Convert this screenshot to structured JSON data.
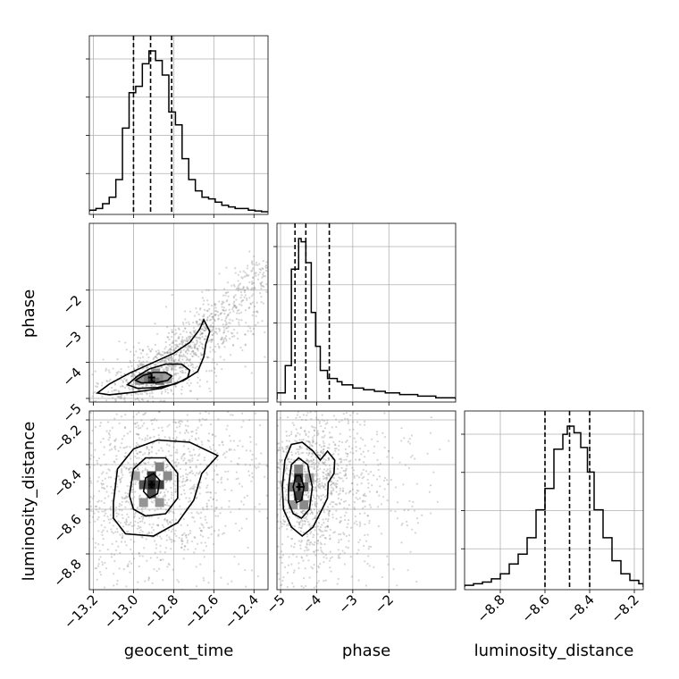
{
  "chart_data": {
    "type": "corner",
    "parameters": [
      "geocent_time",
      "phase",
      "luminosity_distance"
    ],
    "axis_labels": {
      "geocent_time": "geocent_time",
      "phase": "phase",
      "luminosity_distance": "luminosity_distance"
    },
    "ranges": {
      "geocent_time": [
        -13.22,
        -12.33
      ],
      "phase": [
        -5.1,
        -0.15
      ],
      "luminosity_distance": [
        -8.96,
        -8.16
      ]
    },
    "ticks": {
      "geocent_time": [
        -13.2,
        -13.0,
        -12.8,
        -12.6,
        -12.4
      ],
      "phase": [
        -5,
        -4,
        -3,
        -2
      ],
      "luminosity_distance": [
        -8.8,
        -8.6,
        -8.4,
        -8.2
      ]
    },
    "tick_labels": {
      "geocent_time": [
        "−13.2",
        "−13.0",
        "−12.8",
        "−12.6",
        "−12.4"
      ],
      "phase": [
        "−5",
        "−4",
        "−3",
        "−2"
      ],
      "luminosity_distance": [
        "−8.8",
        "−8.6",
        "−8.4",
        "−8.2"
      ]
    },
    "quantiles": {
      "geocent_time": [
        -13.0,
        -12.915,
        -12.81
      ],
      "phase": [
        -4.6,
        -4.3,
        -3.65
      ],
      "luminosity_distance": [
        -8.6,
        -8.49,
        -8.4
      ]
    },
    "histograms": {
      "geocent_time": {
        "edges": [
          -13.22,
          -13.187,
          -13.154,
          -13.121,
          -13.088,
          -13.055,
          -13.022,
          -12.989,
          -12.956,
          -12.923,
          -12.89,
          -12.857,
          -12.824,
          -12.791,
          -12.758,
          -12.725,
          -12.692,
          -12.659,
          -12.626,
          -12.593,
          -12.56,
          -12.527,
          -12.494,
          -12.461,
          -12.428,
          -12.395,
          -12.362,
          -12.33
        ],
        "counts": [
          0.01,
          0.02,
          0.05,
          0.09,
          0.2,
          0.52,
          0.74,
          0.78,
          0.92,
          1.0,
          0.94,
          0.85,
          0.62,
          0.54,
          0.33,
          0.2,
          0.13,
          0.09,
          0.08,
          0.06,
          0.04,
          0.03,
          0.02,
          0.02,
          0.01,
          0.005,
          0.0
        ]
      },
      "phase": {
        "edges": [
          -5.1,
          -4.87,
          -4.7,
          -4.5,
          -4.43,
          -4.3,
          -4.15,
          -4.03,
          -3.9,
          -3.7,
          -3.43,
          -3.3,
          -3.0,
          -2.7,
          -2.4,
          -2.1,
          -1.7,
          -1.2,
          -0.7,
          -0.15
        ],
        "counts": [
          0.04,
          0.21,
          0.81,
          1.0,
          0.98,
          0.85,
          0.54,
          0.33,
          0.18,
          0.13,
          0.11,
          0.09,
          0.07,
          0.06,
          0.05,
          0.04,
          0.03,
          0.02,
          0.01
        ]
      },
      "luminosity_distance": {
        "edges": [
          -8.96,
          -8.92,
          -8.88,
          -8.84,
          -8.8,
          -8.76,
          -8.72,
          -8.68,
          -8.64,
          -8.6,
          -8.56,
          -8.52,
          -8.5,
          -8.47,
          -8.44,
          -8.41,
          -8.38,
          -8.34,
          -8.3,
          -8.26,
          -8.22,
          -8.18,
          -8.16
        ],
        "counts": [
          0.01,
          0.02,
          0.03,
          0.05,
          0.08,
          0.14,
          0.2,
          0.3,
          0.47,
          0.6,
          0.84,
          0.93,
          0.98,
          0.94,
          0.85,
          0.7,
          0.47,
          0.3,
          0.16,
          0.08,
          0.04,
          0.02
        ]
      }
    },
    "joint": [
      {
        "x": "geocent_time",
        "y": "phase",
        "peak": [
          -12.91,
          -4.42
        ],
        "contours": [
          [
            [
              -13.18,
              -4.85
            ],
            [
              -13.12,
              -4.6
            ],
            [
              -13.02,
              -4.3
            ],
            [
              -12.92,
              -4.05
            ],
            [
              -12.8,
              -3.75
            ],
            [
              -12.72,
              -3.45
            ],
            [
              -12.67,
              -3.08
            ],
            [
              -12.65,
              -2.82
            ],
            [
              -12.62,
              -3.15
            ],
            [
              -12.64,
              -3.5
            ],
            [
              -12.65,
              -3.85
            ],
            [
              -12.68,
              -4.25
            ],
            [
              -12.75,
              -4.5
            ],
            [
              -12.86,
              -4.72
            ],
            [
              -13.0,
              -4.83
            ],
            [
              -13.12,
              -4.9
            ],
            [
              -13.18,
              -4.85
            ]
          ],
          [
            [
              -13.03,
              -4.62
            ],
            [
              -12.98,
              -4.38
            ],
            [
              -12.92,
              -4.18
            ],
            [
              -12.84,
              -4.05
            ],
            [
              -12.76,
              -4.05
            ],
            [
              -12.72,
              -4.22
            ],
            [
              -12.73,
              -4.42
            ],
            [
              -12.79,
              -4.6
            ],
            [
              -12.88,
              -4.7
            ],
            [
              -12.98,
              -4.72
            ],
            [
              -13.03,
              -4.62
            ]
          ],
          [
            [
              -12.99,
              -4.5
            ],
            [
              -12.95,
              -4.36
            ],
            [
              -12.9,
              -4.28
            ],
            [
              -12.84,
              -4.28
            ],
            [
              -12.81,
              -4.38
            ],
            [
              -12.83,
              -4.5
            ],
            [
              -12.89,
              -4.57
            ],
            [
              -12.96,
              -4.57
            ],
            [
              -12.99,
              -4.5
            ]
          ]
        ],
        "blocks": [
          [
            -12.93,
            -4.46,
            0.9
          ],
          [
            -12.89,
            -4.46,
            1.0
          ],
          [
            -12.91,
            -4.38,
            0.75
          ],
          [
            -12.87,
            -4.5,
            0.6
          ],
          [
            -12.95,
            -4.42,
            0.55
          ],
          [
            -12.85,
            -4.38,
            0.45
          ],
          [
            -12.97,
            -4.5,
            0.4
          ],
          [
            -12.89,
            -4.3,
            0.4
          ],
          [
            -12.83,
            -4.46,
            0.35
          ]
        ]
      },
      {
        "x": "geocent_time",
        "y": "luminosity_distance",
        "peak": [
          -12.91,
          -8.49
        ],
        "contours": [
          [
            [
              -13.1,
              -8.57
            ],
            [
              -13.08,
              -8.42
            ],
            [
              -13.0,
              -8.33
            ],
            [
              -12.88,
              -8.29
            ],
            [
              -12.72,
              -8.3
            ],
            [
              -12.58,
              -8.36
            ],
            [
              -12.66,
              -8.44
            ],
            [
              -12.7,
              -8.56
            ],
            [
              -12.78,
              -8.66
            ],
            [
              -12.9,
              -8.72
            ],
            [
              -13.04,
              -8.71
            ],
            [
              -13.1,
              -8.64
            ],
            [
              -13.1,
              -8.57
            ]
          ],
          [
            [
              -13.02,
              -8.54
            ],
            [
              -13.0,
              -8.42
            ],
            [
              -12.94,
              -8.37
            ],
            [
              -12.84,
              -8.37
            ],
            [
              -12.78,
              -8.44
            ],
            [
              -12.78,
              -8.55
            ],
            [
              -12.84,
              -8.62
            ],
            [
              -12.94,
              -8.63
            ],
            [
              -13.0,
              -8.6
            ],
            [
              -13.02,
              -8.54
            ]
          ],
          [
            [
              -12.95,
              -8.52
            ],
            [
              -12.94,
              -8.46
            ],
            [
              -12.9,
              -8.44
            ],
            [
              -12.87,
              -8.47
            ],
            [
              -12.88,
              -8.53
            ],
            [
              -12.92,
              -8.55
            ],
            [
              -12.95,
              -8.52
            ]
          ]
        ],
        "blocks": [
          [
            -12.91,
            -8.49,
            1.0
          ],
          [
            -12.91,
            -8.45,
            0.85
          ],
          [
            -12.87,
            -8.49,
            0.8
          ],
          [
            -12.95,
            -8.49,
            0.7
          ],
          [
            -12.91,
            -8.53,
            0.75
          ],
          [
            -12.87,
            -8.41,
            0.5
          ],
          [
            -12.83,
            -8.45,
            0.45
          ],
          [
            -12.95,
            -8.57,
            0.4
          ],
          [
            -12.87,
            -8.57,
            0.4
          ],
          [
            -12.99,
            -8.45,
            0.35
          ]
        ]
      },
      {
        "x": "phase",
        "y": "luminosity_distance",
        "peak": [
          -4.47,
          -8.5
        ],
        "contours": [
          [
            [
              -4.95,
              -8.5
            ],
            [
              -4.88,
              -8.38
            ],
            [
              -4.7,
              -8.31
            ],
            [
              -4.4,
              -8.3
            ],
            [
              -4.1,
              -8.34
            ],
            [
              -3.9,
              -8.38
            ],
            [
              -3.7,
              -8.34
            ],
            [
              -3.5,
              -8.38
            ],
            [
              -3.52,
              -8.44
            ],
            [
              -3.68,
              -8.48
            ],
            [
              -3.7,
              -8.55
            ],
            [
              -3.85,
              -8.6
            ],
            [
              -4.1,
              -8.68
            ],
            [
              -4.4,
              -8.72
            ],
            [
              -4.7,
              -8.68
            ],
            [
              -4.92,
              -8.6
            ],
            [
              -4.95,
              -8.5
            ]
          ],
          [
            [
              -4.78,
              -8.5
            ],
            [
              -4.7,
              -8.4
            ],
            [
              -4.5,
              -8.37
            ],
            [
              -4.25,
              -8.4
            ],
            [
              -4.12,
              -8.5
            ],
            [
              -4.2,
              -8.6
            ],
            [
              -4.42,
              -8.64
            ],
            [
              -4.65,
              -8.62
            ],
            [
              -4.78,
              -8.57
            ],
            [
              -4.78,
              -8.5
            ]
          ],
          [
            [
              -4.65,
              -8.5
            ],
            [
              -4.58,
              -8.45
            ],
            [
              -4.45,
              -8.45
            ],
            [
              -4.35,
              -8.5
            ],
            [
              -4.42,
              -8.56
            ],
            [
              -4.56,
              -8.57
            ],
            [
              -4.65,
              -8.5
            ]
          ]
        ],
        "blocks": [
          [
            -4.5,
            -8.5,
            1.0
          ],
          [
            -4.5,
            -8.46,
            0.85
          ],
          [
            -4.5,
            -8.54,
            0.8
          ],
          [
            -4.35,
            -8.5,
            0.6
          ],
          [
            -4.65,
            -8.5,
            0.55
          ],
          [
            -4.5,
            -8.42,
            0.5
          ],
          [
            -4.35,
            -8.58,
            0.45
          ],
          [
            -4.65,
            -8.58,
            0.4
          ],
          [
            -4.2,
            -8.46,
            0.35
          ]
        ]
      }
    ]
  }
}
